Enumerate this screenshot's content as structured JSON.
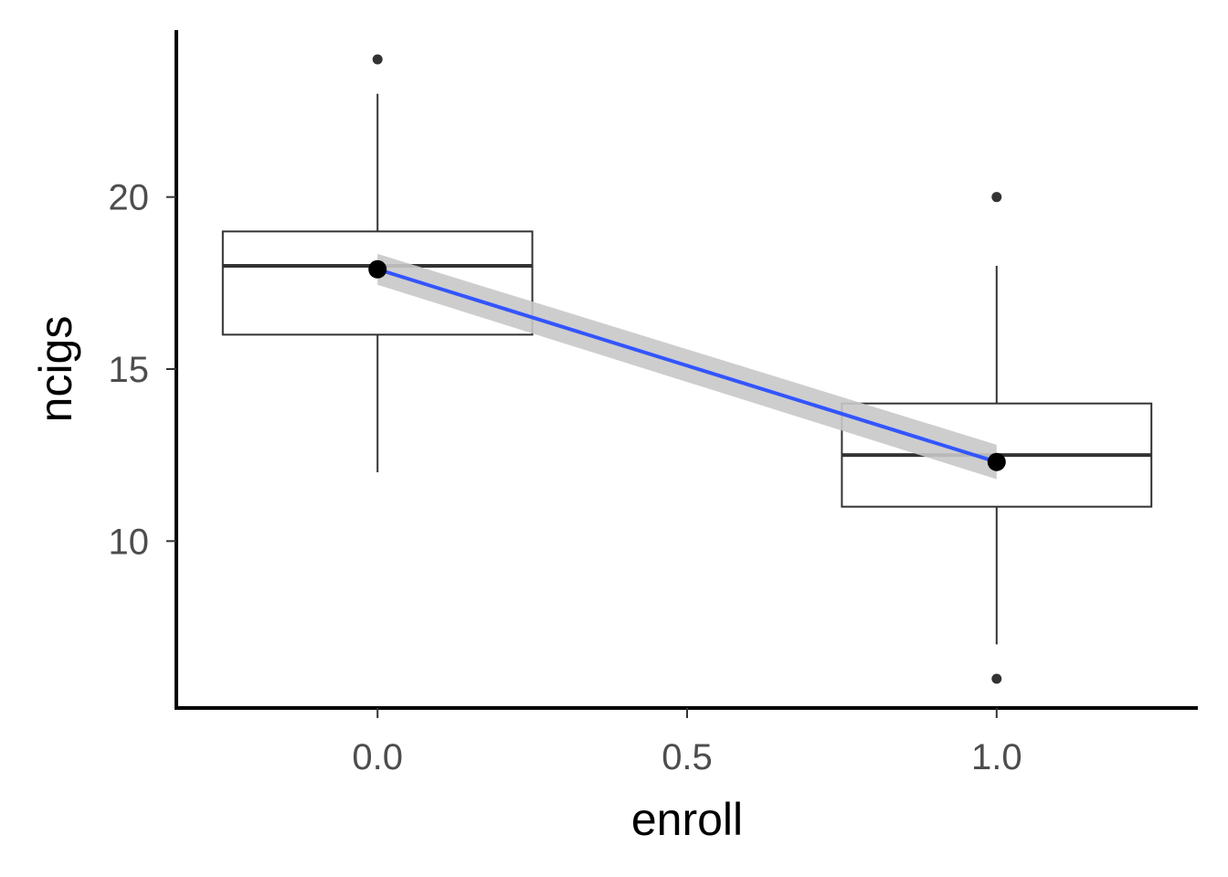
{
  "chart_data": {
    "type": "boxplot",
    "xlabel": "enroll",
    "ylabel": "ncigs",
    "xlim": [
      -0.325,
      1.325
    ],
    "ylim": [
      5.15,
      24.85
    ],
    "x_ticks": [
      0.0,
      0.5,
      1.0
    ],
    "x_tick_labels": [
      "0.0",
      "0.5",
      "1.0"
    ],
    "y_ticks": [
      10,
      15,
      20
    ],
    "y_tick_labels": [
      "10",
      "15",
      "20"
    ],
    "grid": false,
    "legend": "none",
    "boxes": [
      {
        "x": 0.0,
        "half_width": 0.25,
        "q1": 16,
        "median": 18,
        "q3": 19,
        "whisker_low": 12,
        "whisker_high": 23,
        "outliers": [
          24
        ]
      },
      {
        "x": 1.0,
        "half_width": 0.25,
        "q1": 11,
        "median": 12.5,
        "q3": 14,
        "whisker_low": 7,
        "whisker_high": 18,
        "outliers": [
          20,
          6
        ]
      }
    ],
    "mean_points": [
      {
        "x": 0.0,
        "y": 17.9
      },
      {
        "x": 1.0,
        "y": 12.3
      }
    ],
    "fit_line": {
      "method": "linear",
      "x": [
        0.0,
        1.0
      ],
      "y": [
        17.9,
        12.3
      ],
      "ci_low": [
        17.45,
        11.8
      ],
      "ci_high": [
        18.35,
        12.8
      ],
      "color": "#3355ff",
      "ribbon_color": "#c8c8c8"
    }
  }
}
